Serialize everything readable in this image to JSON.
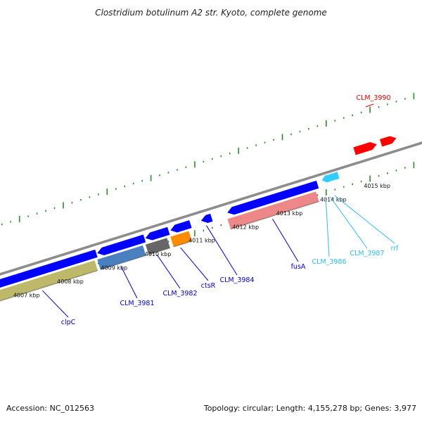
{
  "title": "Clostridium botulinum A2 str. Kyoto, complete genome",
  "footer": {
    "accession": "Accession: NC_012563",
    "summary": "Topology: circular; Length: 4,155,278 bp; Genes: 3,977"
  },
  "colors": {
    "backbone": "#8c8c8c",
    "tick": "#2e8b2e",
    "forward_gene": "#ff0000",
    "reverse_gene": "#0000ff",
    "trna_gene": "#33ccff",
    "label_blue": "#0000cc",
    "label_cyan": "#33bbee",
    "label_red": "#dd0000"
  },
  "scale": {
    "unit": "kbp",
    "ticks": [
      {
        "kbp": 4007,
        "label": "4007 kbp"
      },
      {
        "kbp": 4008,
        "label": "4008 kbp"
      },
      {
        "kbp": 4009,
        "label": "4009 kbp"
      },
      {
        "kbp": 4010,
        "label": "4010 kbp"
      },
      {
        "kbp": 4011,
        "label": "4011 kbp"
      },
      {
        "kbp": 4012,
        "label": "4012 kbp"
      },
      {
        "kbp": 4013,
        "label": "4013 kbp"
      },
      {
        "kbp": 4014,
        "label": "4014 kbp"
      },
      {
        "kbp": 4015,
        "label": "4015 kbp"
      }
    ]
  },
  "features": [
    {
      "name": "clpC",
      "strand": "reverse",
      "type": "gene",
      "start_kbp": 4006.3,
      "end_kbp": 4008.75,
      "cog_color": "#bdb86a",
      "label_color": "#0000cc"
    },
    {
      "name": "CLM_3981",
      "strand": "reverse",
      "type": "gene",
      "start_kbp": 4008.78,
      "end_kbp": 4009.85,
      "cog_color": "#4a7fc0",
      "label_color": "#0000cc"
    },
    {
      "name": "CLM_3982",
      "strand": "reverse",
      "type": "gene",
      "start_kbp": 4009.88,
      "end_kbp": 4010.4,
      "cog_color": "#666666",
      "label_color": "#0000cc"
    },
    {
      "name": "ctsR",
      "strand": "reverse",
      "type": "gene",
      "start_kbp": 4010.45,
      "end_kbp": 4010.9,
      "cog_color": "#ff8c00",
      "label_color": "#0000cc"
    },
    {
      "name": "CLM_3984",
      "strand": "reverse",
      "type": "gene",
      "start_kbp": 4011.15,
      "end_kbp": 4011.38,
      "cog_color": "",
      "label_color": "#0000cc"
    },
    {
      "name": "fusA",
      "strand": "reverse",
      "type": "gene",
      "start_kbp": 4011.75,
      "end_kbp": 4013.8,
      "cog_color": "#ee8888",
      "label_color": "#0000cc"
    },
    {
      "name": "CLM_3986",
      "strand": "reverse",
      "type": "tRNA",
      "start_kbp": 4013.95,
      "end_kbp": 4014.03,
      "cog_color": "",
      "label_color": "#33bbee"
    },
    {
      "name": "CLM_3987",
      "strand": "reverse",
      "type": "tRNA",
      "start_kbp": 4014.05,
      "end_kbp": 4014.13,
      "cog_color": "",
      "label_color": "#33bbee"
    },
    {
      "name": "rrf",
      "strand": "reverse",
      "type": "rRNA",
      "start_kbp": 4014.15,
      "end_kbp": 4014.23,
      "cog_color": "",
      "label_color": "#33bbee"
    },
    {
      "name": "CLM_3990",
      "strand": "forward",
      "type": "gene",
      "start_kbp": 4014.65,
      "end_kbp": 4015.15,
      "cog_color": "",
      "label_color": "#dd0000"
    }
  ],
  "extra_forward_genes": [
    {
      "start_kbp": 4015.25,
      "end_kbp": 4015.6
    }
  ]
}
